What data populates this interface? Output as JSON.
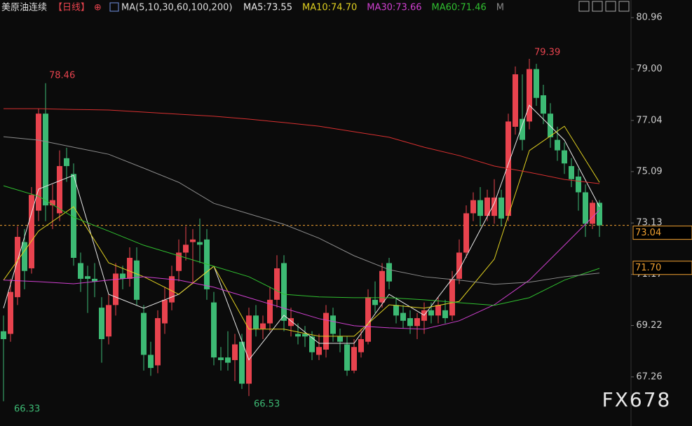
{
  "header": {
    "symbol": "美原油连续",
    "period": "【日线】",
    "icon": "⊕",
    "ma_params": "MA(5,10,30,60,100,200)",
    "ma_values": [
      {
        "text": "MA5:73.55",
        "color": "#e8e8e8"
      },
      {
        "text": "MA10:74.70",
        "color": "#e0d020"
      },
      {
        "text": "MA30:73.66",
        "color": "#d040d0"
      },
      {
        "text": "MA60:71.46",
        "color": "#30c030"
      },
      {
        "text": "M",
        "color": "#888888"
      }
    ]
  },
  "chart_data": {
    "type": "candlestick",
    "ylim": [
      65.6,
      81.1
    ],
    "yticks": [
      80.96,
      {
        "value": 79.0,
        "label": "79.00"
      },
      77.04,
      75.09,
      73.13,
      71.17,
      69.22,
      67.26
    ],
    "up_color": "#e8434e",
    "down_color": "#3dba74",
    "open": [
      69.0,
      68.9,
      70.3,
      72.4,
      71.4,
      73.6,
      77.3,
      73.8,
      73.5,
      75.6,
      75.0,
      71.6,
      71.1,
      71.0,
      69.9,
      68.8,
      70.0,
      71.2,
      71.0,
      71.7,
      69.7,
      68.1,
      67.7,
      69.3,
      70.1,
      71.3,
      72.0,
      72.4,
      72.4,
      72.5,
      70.1,
      68.0,
      68.0,
      67.9,
      68.6,
      67.0,
      69.6,
      69.1,
      69.3,
      70.2,
      71.6,
      69.2,
      68.9,
      68.9,
      68.8,
      68.1,
      68.3,
      69.6,
      68.8,
      68.5,
      67.5,
      68.2,
      68.6,
      70.2,
      70.1,
      71.6,
      70.0,
      69.7,
      69.5,
      69.2,
      69.4,
      69.8,
      69.6,
      69.8,
      69.6,
      71.0,
      72.0,
      73.5,
      74.0,
      73.4,
      73.4,
      74.1,
      73.4,
      76.8,
      77.1,
      77.0,
      79.0,
      78.0,
      77.3,
      76.3,
      75.9,
      75.3,
      74.9,
      74.3,
      73.1,
      73.9
    ],
    "high": [
      69.6,
      71.0,
      73.0,
      72.9,
      74.5,
      77.5,
      78.46,
      74.6,
      75.9,
      76.0,
      75.4,
      72.0,
      71.5,
      71.6,
      70.3,
      70.4,
      71.6,
      71.5,
      72.2,
      72.2,
      70.0,
      68.6,
      69.8,
      70.7,
      71.5,
      72.5,
      73.0,
      72.9,
      73.3,
      72.9,
      70.5,
      68.4,
      69.0,
      68.9,
      68.9,
      69.9,
      70.0,
      69.6,
      70.7,
      71.9,
      71.9,
      69.9,
      69.3,
      69.2,
      69.0,
      68.9,
      70.0,
      69.9,
      69.1,
      68.8,
      68.7,
      69.1,
      70.6,
      70.9,
      71.6,
      71.8,
      70.3,
      70.0,
      69.8,
      69.7,
      70.1,
      70.1,
      70.3,
      70.2,
      71.3,
      72.5,
      73.8,
      74.3,
      74.5,
      74.4,
      74.8,
      74.4,
      77.3,
      79.1,
      78.8,
      79.39,
      79.2,
      78.4,
      77.7,
      76.8,
      76.2,
      75.6,
      75.2,
      74.6,
      74.0,
      74.0
    ],
    "low": [
      66.33,
      68.6,
      70.0,
      70.6,
      71.2,
      73.2,
      73.2,
      72.9,
      73.2,
      74.7,
      71.5,
      70.5,
      69.7,
      70.3,
      67.8,
      68.5,
      69.6,
      70.6,
      70.7,
      70.0,
      67.5,
      67.3,
      67.4,
      68.9,
      69.8,
      70.9,
      71.7,
      70.8,
      71.6,
      70.2,
      67.7,
      67.5,
      67.5,
      67.1,
      66.8,
      66.53,
      68.8,
      68.7,
      69.0,
      69.9,
      69.0,
      68.8,
      68.5,
      68.4,
      67.9,
      67.9,
      68.0,
      68.6,
      68.2,
      67.3,
      67.4,
      68.0,
      68.5,
      69.7,
      69.9,
      70.6,
      69.3,
      69.1,
      68.9,
      68.7,
      68.9,
      69.3,
      69.3,
      69.3,
      69.4,
      70.8,
      71.8,
      73.2,
      73.0,
      73.2,
      73.1,
      73.0,
      73.2,
      76.5,
      75.9,
      76.7,
      77.6,
      76.9,
      76.0,
      75.5,
      75.0,
      74.5,
      73.6,
      72.6,
      72.9,
      72.6
    ],
    "close": [
      68.7,
      70.5,
      72.6,
      71.3,
      74.2,
      77.3,
      73.8,
      74.0,
      75.3,
      75.3,
      71.8,
      71.0,
      71.0,
      70.9,
      68.7,
      70.0,
      71.2,
      71.0,
      71.8,
      70.2,
      68.1,
      67.6,
      69.5,
      70.2,
      71.1,
      72.0,
      72.3,
      72.5,
      72.3,
      70.6,
      68.0,
      67.9,
      67.8,
      68.5,
      67.0,
      69.6,
      69.1,
      69.3,
      70.2,
      71.4,
      69.4,
      69.5,
      68.8,
      68.8,
      68.2,
      68.4,
      69.7,
      68.9,
      68.6,
      67.5,
      68.4,
      68.7,
      70.3,
      70.0,
      71.3,
      70.9,
      69.6,
      69.4,
      69.2,
      69.5,
      69.8,
      69.6,
      70.0,
      69.5,
      71.0,
      72.0,
      73.5,
      74.0,
      73.4,
      74.1,
      74.1,
      73.3,
      77.0,
      78.8,
      76.3,
      79.0,
      77.9,
      77.3,
      76.4,
      75.9,
      75.4,
      74.8,
      74.3,
      73.1,
      73.9,
      73.04
    ],
    "series": [
      {
        "name": "MA5",
        "color": "#e8e8e8",
        "x": [
          0,
          5,
          10,
          15,
          20,
          25,
          30,
          35,
          40,
          45,
          50,
          55,
          60,
          65,
          70,
          75,
          80,
          85
        ],
        "values": [
          69.88,
          74.42,
          74.95,
          70.41,
          69.88,
          70.41,
          71.48,
          67.91,
          69.61,
          68.54,
          68.54,
          70.41,
          69.61,
          71.35,
          73.88,
          77.62,
          76.29,
          73.75
        ]
      },
      {
        "name": "MA10",
        "color": "#e0d020",
        "x": [
          0,
          5,
          10,
          15,
          20,
          25,
          30,
          35,
          40,
          45,
          50,
          55,
          60,
          65,
          70,
          75,
          80,
          85
        ],
        "values": [
          70.95,
          72.82,
          73.75,
          71.61,
          71.08,
          70.41,
          71.48,
          69.08,
          69.08,
          68.81,
          68.81,
          70.01,
          69.88,
          70.14,
          71.75,
          75.89,
          76.82,
          74.68
        ]
      },
      {
        "name": "MA30",
        "color": "#d040d0",
        "x": [
          0,
          5,
          10,
          15,
          20,
          25,
          30,
          35,
          40,
          45,
          50,
          55,
          60,
          65,
          70,
          75,
          80,
          85
        ],
        "values": [
          70.95,
          70.89,
          70.81,
          70.95,
          71.08,
          70.95,
          70.68,
          70.28,
          69.88,
          69.48,
          69.21,
          69.13,
          69.08,
          69.4,
          70.01,
          70.95,
          72.28,
          73.62
        ]
      },
      {
        "name": "MA60",
        "color": "#30c030",
        "x": [
          0,
          5,
          10,
          15,
          20,
          25,
          30,
          35,
          40,
          45,
          50,
          55,
          60,
          65,
          70,
          75,
          80,
          85
        ],
        "values": [
          74.55,
          74.15,
          73.35,
          72.82,
          72.28,
          71.88,
          71.48,
          71.08,
          70.41,
          70.31,
          70.28,
          70.28,
          70.2,
          70.09,
          69.99,
          70.28,
          70.95,
          71.4
        ]
      },
      {
        "name": "MA100",
        "color": "#8c8c8c",
        "x": [
          0,
          5,
          10,
          15,
          20,
          25,
          30,
          35,
          40,
          45,
          50,
          55,
          60,
          65,
          70,
          75,
          80,
          85
        ],
        "values": [
          76.42,
          76.29,
          76.02,
          75.75,
          75.22,
          74.68,
          73.88,
          73.48,
          73.08,
          72.55,
          71.88,
          71.35,
          71.08,
          70.95,
          70.79,
          70.87,
          71.08,
          71.22
        ]
      },
      {
        "name": "MA200",
        "color": "#d83030",
        "x": [
          0,
          5,
          10,
          15,
          20,
          25,
          30,
          35,
          40,
          45,
          50,
          55,
          60,
          65,
          70,
          75,
          80,
          85
        ],
        "values": [
          77.49,
          77.49,
          77.46,
          77.44,
          77.36,
          77.28,
          77.2,
          77.09,
          76.96,
          76.82,
          76.61,
          76.4,
          76.02,
          75.7,
          75.3,
          75.06,
          74.79,
          74.63
        ]
      }
    ],
    "last_price": {
      "value": 73.04,
      "label": "73.04",
      "color": "#f0a030"
    },
    "marker": {
      "value": 71.7,
      "label": "71.70",
      "color": "#f0a030"
    },
    "annotations": [
      "78.46",
      "79.39",
      "66.33",
      "66.53"
    ],
    "watermark": "FX678"
  }
}
